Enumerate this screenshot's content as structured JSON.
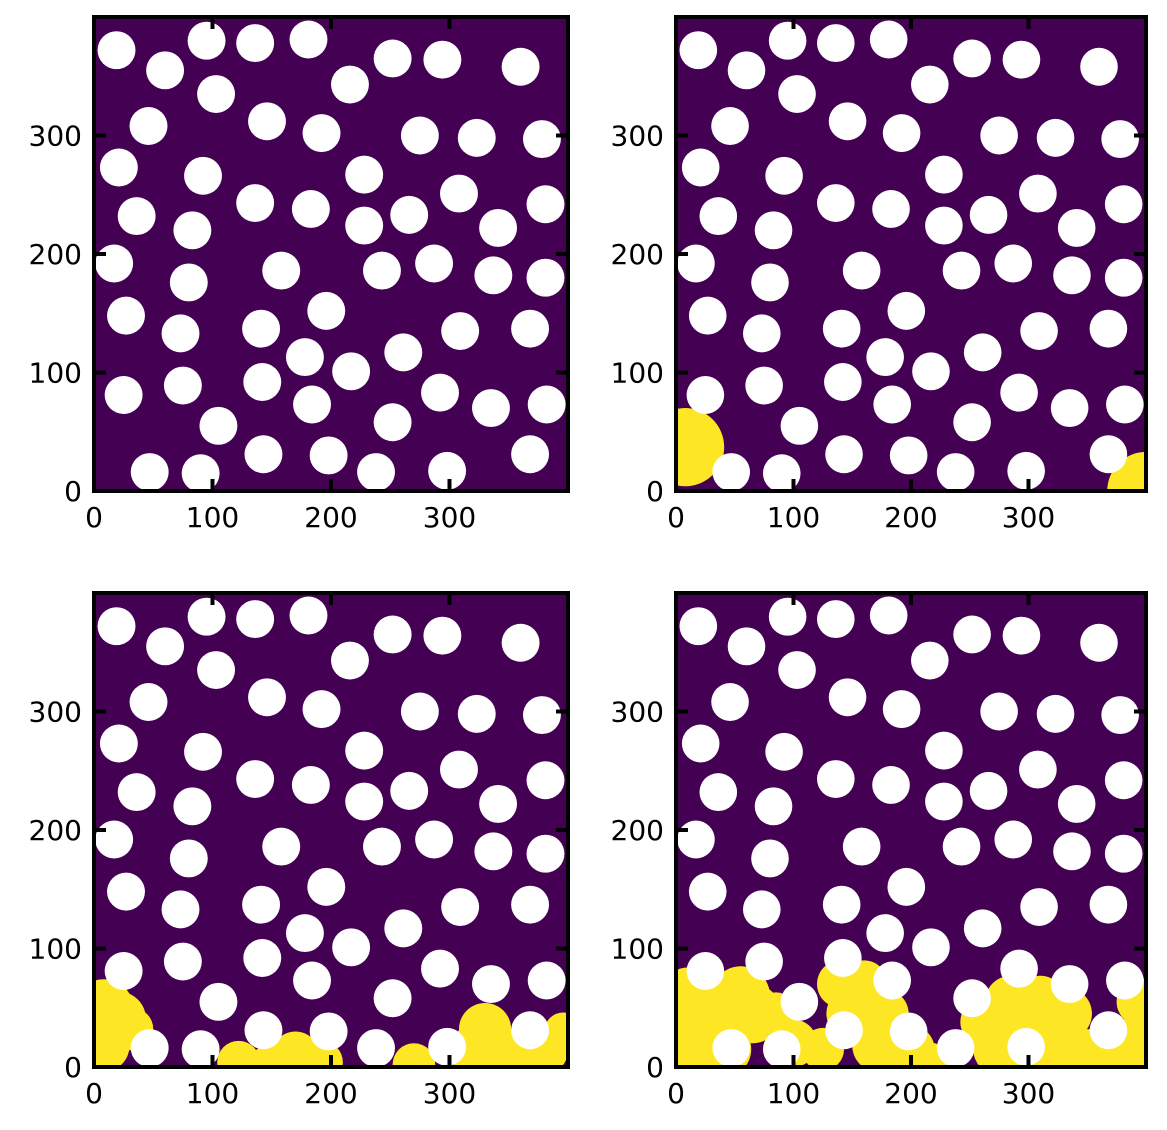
{
  "figure": {
    "background": "#ffffff"
  },
  "colors": {
    "background": "#440154",
    "obstacle": "#ffffff",
    "filled": "#fde725",
    "frame": "#000000"
  },
  "chart_data": [
    {
      "type": "heatmap",
      "title": "",
      "xlabel": "",
      "ylabel": "",
      "xlim": [
        0,
        400
      ],
      "ylim": [
        0,
        400
      ],
      "xticks": [
        0,
        100,
        200,
        300
      ],
      "yticks": [
        0,
        100,
        200,
        300
      ],
      "xtick_labels": [
        "0",
        "100",
        "200",
        "300"
      ],
      "ytick_labels": [
        "0",
        "100",
        "200",
        "300"
      ],
      "grid": false,
      "filled_regions": []
    },
    {
      "type": "heatmap",
      "title": "",
      "xlabel": "",
      "ylabel": "",
      "xlim": [
        0,
        400
      ],
      "ylim": [
        0,
        400
      ],
      "xticks": [
        0,
        100,
        200,
        300
      ],
      "yticks": [
        0,
        100,
        200,
        300
      ],
      "xtick_labels": [
        "0",
        "100",
        "200",
        "300"
      ],
      "ytick_labels": [
        "0",
        "100",
        "200",
        "300"
      ],
      "grid": false,
      "filled_regions": [
        [
          8,
          37,
          33
        ],
        [
          400,
          0,
          33
        ]
      ]
    },
    {
      "type": "heatmap",
      "title": "",
      "xlabel": "",
      "ylabel": "",
      "xlim": [
        0,
        400
      ],
      "ylim": [
        0,
        400
      ],
      "xticks": [
        0,
        100,
        200,
        300
      ],
      "yticks": [
        0,
        100,
        200,
        300
      ],
      "xtick_labels": [
        "0",
        "100",
        "200",
        "300"
      ],
      "ytick_labels": [
        "0",
        "100",
        "200",
        "300"
      ],
      "grid": false,
      "filled_regions": [
        [
          8,
          48,
          26
        ],
        [
          20,
          40,
          24
        ],
        [
          8,
          18,
          22
        ],
        [
          32,
          32,
          18
        ],
        [
          122,
          4,
          18
        ],
        [
          150,
          2,
          18
        ],
        [
          170,
          10,
          20
        ],
        [
          192,
          4,
          18
        ],
        [
          270,
          2,
          18
        ],
        [
          330,
          32,
          22
        ],
        [
          322,
          14,
          22
        ],
        [
          352,
          10,
          22
        ],
        [
          380,
          14,
          20
        ],
        [
          396,
          30,
          16
        ]
      ]
    },
    {
      "type": "heatmap",
      "title": "",
      "xlabel": "",
      "ylabel": "",
      "xlim": [
        0,
        400
      ],
      "ylim": [
        0,
        400
      ],
      "xticks": [
        0,
        100,
        200,
        300
      ],
      "yticks": [
        0,
        100,
        200,
        300
      ],
      "xtick_labels": [
        "0",
        "100",
        "200",
        "300"
      ],
      "ytick_labels": [
        "0",
        "100",
        "200",
        "300"
      ],
      "grid": false,
      "filled_regions": [
        [
          10,
          62,
          22
        ],
        [
          10,
          30,
          30
        ],
        [
          35,
          38,
          28
        ],
        [
          55,
          60,
          25
        ],
        [
          65,
          45,
          25
        ],
        [
          40,
          15,
          24
        ],
        [
          85,
          45,
          18
        ],
        [
          100,
          20,
          20
        ],
        [
          125,
          15,
          18
        ],
        [
          140,
          70,
          20
        ],
        [
          160,
          70,
          20
        ],
        [
          150,
          45,
          22
        ],
        [
          178,
          45,
          20
        ],
        [
          172,
          18,
          22
        ],
        [
          200,
          15,
          20
        ],
        [
          215,
          5,
          16
        ],
        [
          262,
          38,
          20
        ],
        [
          285,
          55,
          22
        ],
        [
          310,
          55,
          22
        ],
        [
          332,
          45,
          22
        ],
        [
          275,
          15,
          22
        ],
        [
          300,
          18,
          22
        ],
        [
          325,
          18,
          22
        ],
        [
          350,
          12,
          20
        ],
        [
          395,
          55,
          20
        ],
        [
          390,
          20,
          22
        ],
        [
          375,
          5,
          16
        ]
      ]
    }
  ],
  "obstacles": [
    [
      19,
      372
    ],
    [
      60,
      355
    ],
    [
      95,
      380
    ],
    [
      136,
      378
    ],
    [
      181,
      381
    ],
    [
      216,
      343
    ],
    [
      252,
      365
    ],
    [
      294,
      364
    ],
    [
      360,
      358
    ],
    [
      103,
      335
    ],
    [
      46,
      308
    ],
    [
      146,
      312
    ],
    [
      192,
      302
    ],
    [
      275,
      300
    ],
    [
      323,
      298
    ],
    [
      378,
      297
    ],
    [
      21,
      273
    ],
    [
      92,
      266
    ],
    [
      228,
      267
    ],
    [
      308,
      251
    ],
    [
      36,
      232
    ],
    [
      136,
      243
    ],
    [
      183,
      238
    ],
    [
      228,
      224
    ],
    [
      266,
      233
    ],
    [
      381,
      242
    ],
    [
      341,
      222
    ],
    [
      83,
      220
    ],
    [
      17,
      192
    ],
    [
      158,
      186
    ],
    [
      243,
      186
    ],
    [
      287,
      192
    ],
    [
      337,
      182
    ],
    [
      381,
      180
    ],
    [
      80,
      176
    ],
    [
      27,
      148
    ],
    [
      196,
      152
    ],
    [
      73,
      133
    ],
    [
      141,
      137
    ],
    [
      178,
      113
    ],
    [
      309,
      135
    ],
    [
      368,
      137
    ],
    [
      261,
      117
    ],
    [
      142,
      92
    ],
    [
      75,
      89
    ],
    [
      217,
      101
    ],
    [
      25,
      81
    ],
    [
      184,
      73
    ],
    [
      292,
      83
    ],
    [
      335,
      70
    ],
    [
      382,
      73
    ],
    [
      105,
      55
    ],
    [
      252,
      58
    ],
    [
      47,
      16
    ],
    [
      90,
      15
    ],
    [
      143,
      31
    ],
    [
      198,
      30
    ],
    [
      238,
      16
    ],
    [
      298,
      17
    ],
    [
      368,
      31
    ]
  ]
}
